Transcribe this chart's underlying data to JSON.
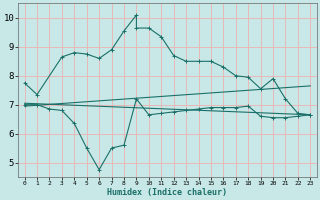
{
  "xlabel": "Humidex (Indice chaleur)",
  "xlim": [
    -0.5,
    23.5
  ],
  "ylim": [
    4.5,
    10.5
  ],
  "yticks": [
    5,
    6,
    7,
    8,
    9,
    10
  ],
  "xticks": [
    0,
    1,
    2,
    3,
    4,
    5,
    6,
    7,
    8,
    9,
    10,
    11,
    12,
    13,
    14,
    15,
    16,
    17,
    18,
    19,
    20,
    21,
    22,
    23
  ],
  "bg_color": "#c8e8e8",
  "grid_color": "#e8b8b8",
  "line_color": "#1a7068",
  "curve1_x": [
    0,
    1,
    3,
    4,
    5,
    6,
    7,
    8,
    9,
    9,
    10,
    11,
    12,
    13,
    14,
    15,
    16,
    17,
    18,
    19,
    20,
    21,
    22,
    23
  ],
  "curve1_y": [
    7.75,
    7.35,
    8.65,
    8.8,
    8.75,
    8.6,
    8.9,
    9.55,
    10.1,
    9.65,
    9.65,
    9.35,
    8.7,
    8.5,
    8.5,
    8.5,
    8.3,
    8.0,
    7.95,
    7.55,
    7.9,
    7.2,
    6.7,
    6.65
  ],
  "curve2_x": [
    0,
    1,
    2,
    3,
    4,
    5,
    6,
    7,
    8,
    9,
    10,
    11,
    12,
    13,
    14,
    15,
    16,
    17,
    18,
    19,
    20,
    21,
    22,
    23
  ],
  "curve2_y": [
    7.0,
    7.0,
    6.85,
    6.8,
    6.35,
    5.5,
    4.75,
    5.5,
    5.6,
    7.2,
    6.65,
    6.7,
    6.75,
    6.8,
    6.85,
    6.9,
    6.9,
    6.9,
    6.95,
    6.6,
    6.55,
    6.55,
    6.6,
    6.65
  ],
  "line1_x": [
    0,
    23
  ],
  "line1_y": [
    6.95,
    7.65
  ],
  "line2_x": [
    0,
    23
  ],
  "line2_y": [
    7.05,
    6.65
  ]
}
